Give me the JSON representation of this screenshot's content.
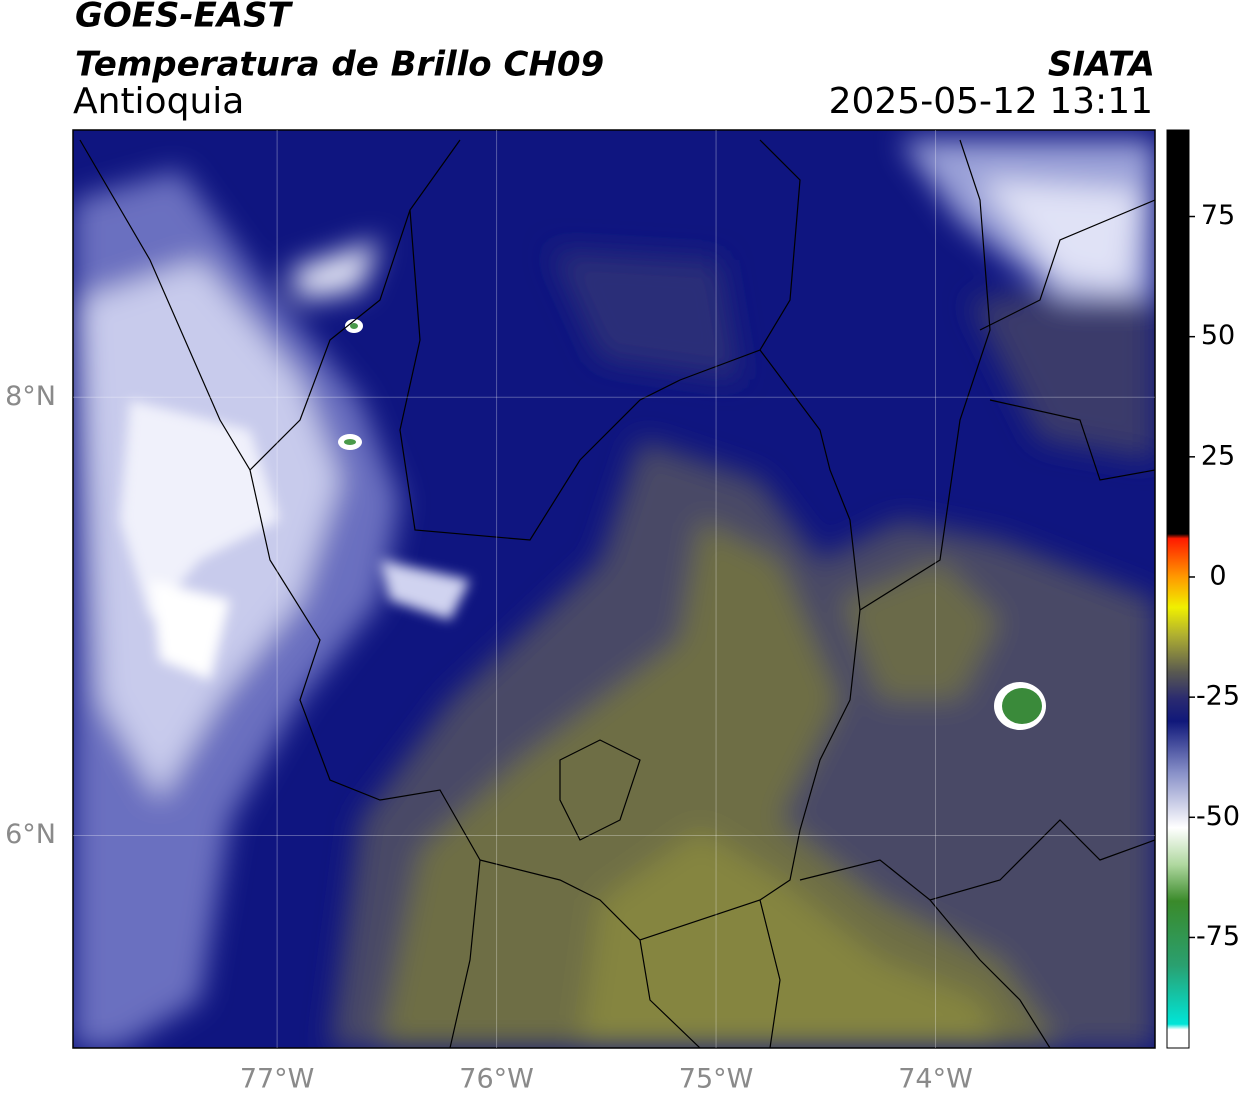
{
  "chart_data": {
    "type": "map",
    "title": "GOES-EAST",
    "subtitle": "Temperatura de Brillo CH09",
    "region": "Antioquia",
    "source": "SIATA",
    "datetime": "2025-05-12 13:11",
    "xlim": [
      -77.93,
      -73.0
    ],
    "ylim": [
      5.03,
      9.22
    ],
    "xticks": [
      {
        "value": -77,
        "label": "77°W"
      },
      {
        "value": -76,
        "label": "76°W"
      },
      {
        "value": -75,
        "label": "75°W"
      },
      {
        "value": -74,
        "label": "74°W"
      }
    ],
    "yticks": [
      {
        "value": 8,
        "label": "8°N"
      },
      {
        "value": 6,
        "label": "6°N"
      }
    ],
    "grid": true,
    "colorbar": {
      "lim": [
        -98,
        93
      ],
      "ticks": [
        75,
        50,
        25,
        0,
        -25,
        -50,
        -75
      ]
    }
  }
}
